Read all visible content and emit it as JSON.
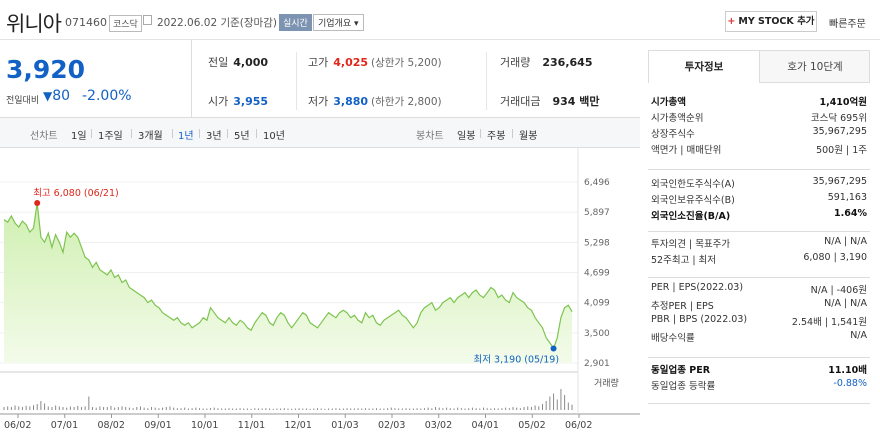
{
  "header": {
    "name": "위니아",
    "code": "071460",
    "market": "코스닥",
    "date": "2022.06.02 기준(장마감)",
    "realtime": "실시간",
    "company_info": "기업개요",
    "mystock_label": "MY STOCK 추가",
    "quick_order": "빠른주문"
  },
  "price": {
    "current": "3,920",
    "change_label": "전일대비",
    "change": "80",
    "rate": "-2.00%"
  },
  "quote": {
    "prev_close_label": "전일",
    "prev_close": "4,000",
    "high_label": "고가",
    "high": "4,025",
    "high_sub": "(상한가 5,200)",
    "volume_label": "거래량",
    "volume": "236,645",
    "open_label": "시가",
    "open": "3,955",
    "low_label": "저가",
    "low": "3,880",
    "low_sub": "(하한가 2,800)",
    "amount_label": "거래대금",
    "amount": "934 백만"
  },
  "periods": {
    "line_label": "선차트",
    "line": [
      "1일",
      "1주일",
      "3개월",
      "1년",
      "3년",
      "5년",
      "10년"
    ],
    "active": "1년",
    "candle_label": "봉차트",
    "candle": [
      "일봉",
      "주봉",
      "월봉"
    ]
  },
  "chart_data": {
    "type": "area",
    "y_ticks": [
      "6,496",
      "5,897",
      "5,298",
      "4,699",
      "4,099",
      "3,500",
      "2,901"
    ],
    "ylim": [
      2901,
      6496
    ],
    "x_ticks": [
      "06/02",
      "07/01",
      "08/02",
      "09/01",
      "10/01",
      "11/01",
      "12/01",
      "01/03",
      "02/03",
      "03/02",
      "04/01",
      "05/02",
      "06/02"
    ],
    "high_annotation": "최고 6,080 (06/21)",
    "low_annotation": "최저 3,190 (05/19)",
    "volume_label": "거래량",
    "series": [
      {
        "values": [
          5750,
          5700,
          5820,
          5680,
          5600,
          5720,
          5650,
          5500,
          5580,
          6080,
          5400,
          5300,
          5480,
          5200,
          5450,
          5300,
          5100,
          5500,
          5400,
          5480,
          5400,
          5200,
          5000,
          4950,
          4800,
          4900,
          4750,
          4700,
          4650,
          4750,
          4600,
          4650,
          4500,
          4550,
          4400,
          4350,
          4300,
          4250,
          4200,
          4100,
          4150,
          4050,
          4000,
          3900,
          3850,
          3800,
          3750,
          3800,
          3700,
          3650,
          3700,
          3600,
          3650,
          3700,
          3800,
          3750,
          4000,
          3900,
          3800,
          3750,
          3700,
          3800,
          3700,
          3650,
          3750,
          3700,
          3600,
          3550,
          3700,
          3800,
          3900,
          3850,
          3700,
          3650,
          3800,
          3900,
          3850,
          3700,
          3600,
          3700,
          3800,
          3900,
          3850,
          3700,
          3650,
          3600,
          3700,
          3800,
          3900,
          3850,
          3800,
          3900,
          3950,
          3900,
          3800,
          3850,
          3750,
          3700,
          3900,
          3800,
          3850,
          3700,
          3650,
          3750,
          3800,
          3850,
          3900,
          3950,
          3850,
          3800,
          3700,
          3600,
          3700,
          3900,
          4000,
          4050,
          4100,
          3950,
          4000,
          4100,
          4150,
          4200,
          4100,
          4200,
          4250,
          4300,
          4200,
          4300,
          4350,
          4250,
          4200,
          4300,
          4400,
          4350,
          4200,
          4250,
          4150,
          4100,
          4300,
          4200,
          4150,
          4100,
          4000,
          3950,
          3800,
          3700,
          3600,
          3400,
          3300,
          3190,
          3400,
          3800,
          4000,
          4050,
          3920
        ]
      }
    ],
    "volume": [
      0.1,
      0.12,
      0.1,
      0.15,
      0.12,
      0.1,
      0.14,
      0.12,
      0.16,
      0.2,
      0.3,
      0.22,
      0.12,
      0.1,
      0.15,
      0.12,
      0.1,
      0.08,
      0.12,
      0.1,
      0.14,
      0.1,
      0.12,
      0.45,
      0.1,
      0.08,
      0.12,
      0.1,
      0.1,
      0.14,
      0.08,
      0.1,
      0.12,
      0.1,
      0.08,
      0.06,
      0.1,
      0.12,
      0.08,
      0.06,
      0.1,
      0.08,
      0.06,
      0.08,
      0.1,
      0.12,
      0.08,
      0.06,
      0.06,
      0.08,
      0.05,
      0.06,
      0.08,
      0.06,
      0.05,
      0.05,
      0.06,
      0.08,
      0.06,
      0.05,
      0.05,
      0.06,
      0.05,
      0.05,
      0.06,
      0.05,
      0.05,
      0.04,
      0.06,
      0.05,
      0.05,
      0.06,
      0.05,
      0.04,
      0.05,
      0.05,
      0.06,
      0.05,
      0.04,
      0.05,
      0.06,
      0.05,
      0.05,
      0.04,
      0.05,
      0.06,
      0.05,
      0.04,
      0.05,
      0.05,
      0.06,
      0.05,
      0.05,
      0.06,
      0.05,
      0.05,
      0.06,
      0.05,
      0.06,
      0.05,
      0.05,
      0.06,
      0.05,
      0.05,
      0.06,
      0.08,
      0.06,
      0.05,
      0.05,
      0.06,
      0.05,
      0.05,
      0.06,
      0.05,
      0.06,
      0.08,
      0.06,
      0.1,
      0.08,
      0.06,
      0.08,
      0.06,
      0.05,
      0.08,
      0.06,
      0.05,
      0.06,
      0.08,
      0.06,
      0.05,
      0.08,
      0.06,
      0.05,
      0.06,
      0.05,
      0.06,
      0.08,
      0.06,
      0.1,
      0.08,
      0.06,
      0.1,
      0.12,
      0.1,
      0.15,
      0.12,
      0.2,
      0.3,
      0.45,
      0.55,
      0.35,
      0.7,
      0.5,
      0.25,
      0.18
    ]
  },
  "side": {
    "tab_active": "투자정보",
    "tab_other": "호가 10단계",
    "group1": [
      {
        "label": "시가총액",
        "value": "1,410억원",
        "bold": true
      },
      {
        "label": "시가총액순위",
        "value": "코스닥 695위"
      },
      {
        "label": "상장주식수",
        "value": "35,967,295"
      },
      {
        "label": "액면가 | 매매단위",
        "value": "500원 | 1주"
      }
    ],
    "group2": [
      {
        "label": "외국인한도주식수(A)",
        "value": "35,967,295"
      },
      {
        "label": "외국인보유주식수(B)",
        "value": "591,163"
      },
      {
        "label": "외국인소진율(B/A)",
        "value": "1.64%",
        "bold": true
      }
    ],
    "group3": [
      {
        "label": "투자의견 | 목표주가",
        "value": "N/A | N/A"
      },
      {
        "label": "52주최고 | 최저",
        "value": "6,080 | 3,190"
      }
    ],
    "group4": [
      {
        "label": "PER | EPS(2022.03)",
        "value": "N/A | -406원"
      },
      {
        "label": "추정PER | EPS",
        "value": "N/A | N/A"
      },
      {
        "label": "PBR | BPS (2022.03)",
        "value": "2.54배 | 1,541원"
      },
      {
        "label": "배당수익률",
        "value": "N/A"
      }
    ],
    "group5": [
      {
        "label": "동일업종 PER",
        "value": "11.10배",
        "bold": true
      },
      {
        "label": "동일업종 등락률",
        "value": "-0.88%"
      }
    ]
  }
}
